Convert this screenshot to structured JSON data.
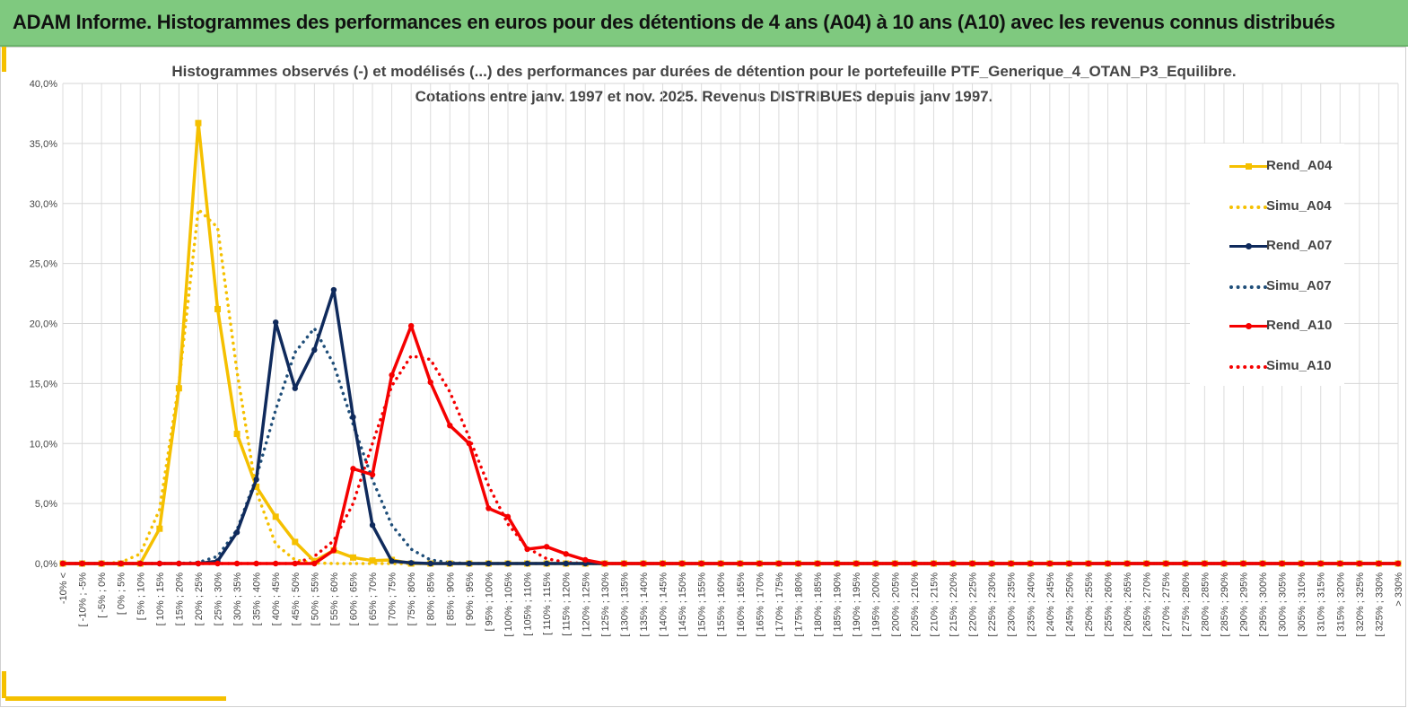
{
  "banner": {
    "title": "ADAM Informe. Histogrammes des performances en euros pour des détentions de 4 ans (A04) à 10 ans (A10) avec les revenus connus distribués"
  },
  "colors": {
    "banner": "#7fc97f",
    "accent": "#f5c000",
    "A04": "#f5c000",
    "A07": "#0f2a5c",
    "A10": "#f50000",
    "Simu_A07": "#1f4e79"
  },
  "chart_data": {
    "type": "line",
    "title": "Histogrammes observés (-) et modélisés (...) des performances par durées de détention pour le portefeuille PTF_Generique_4_OTAN_P3_Equilibre.",
    "subtitle": "Cotations entre janv. 1997 et nov. 2025. Revenus DISTRIBUES depuis janv 1997.",
    "xlabel": "",
    "ylabel": "",
    "ylim": [
      0,
      40
    ],
    "y_ticks": [
      "0,0%",
      "5,0%",
      "10,0%",
      "15,0%",
      "20,0%",
      "25,0%",
      "30,0%",
      "35,0%",
      "40,0%"
    ],
    "grid": true,
    "legend_position": "right",
    "categories": [
      "-10% <",
      "[ -10% ; -5%",
      "[ -5% ; 0%",
      "[ 0% ; 5%",
      "[ 5% ; 10%",
      "[ 10% ; 15%",
      "[ 15% ; 20%",
      "[ 20% ; 25%",
      "[ 25% ; 30%",
      "[ 30% ; 35%",
      "[ 35% ; 40%",
      "[ 40% ; 45%",
      "[ 45% ; 50%",
      "[ 50% ; 55%",
      "[ 55% ; 60%",
      "[ 60% ; 65%",
      "[ 65% ; 70%",
      "[ 70% ; 75%",
      "[ 75% ; 80%",
      "[ 80% ; 85%",
      "[ 85% ; 90%",
      "[ 90% ; 95%",
      "[ 95% ; 100%",
      "[ 100% ; 105%",
      "[ 105% ; 110%",
      "[ 110% ; 115%",
      "[ 115% ; 120%",
      "[ 120% ; 125%",
      "[ 125% ; 130%",
      "[ 130% ; 135%",
      "[ 135% ; 140%",
      "[ 140% ; 145%",
      "[ 145% ; 150%",
      "[ 150% ; 155%",
      "[ 155% ; 160%",
      "[ 160% ; 165%",
      "[ 165% ; 170%",
      "[ 170% ; 175%",
      "[ 175% ; 180%",
      "[ 180% ; 185%",
      "[ 185% ; 190%",
      "[ 190% ; 195%",
      "[ 195% ; 200%",
      "[ 200% ; 205%",
      "[ 205% ; 210%",
      "[ 210% ; 215%",
      "[ 215% ; 220%",
      "[ 220% ; 225%",
      "[ 225% ; 230%",
      "[ 230% ; 235%",
      "[ 235% ; 240%",
      "[ 240% ; 245%",
      "[ 245% ; 250%",
      "[ 250% ; 255%",
      "[ 255% ; 260%",
      "[ 260% ; 265%",
      "[ 265% ; 270%",
      "[ 270% ; 275%",
      "[ 275% ; 280%",
      "[ 280% ; 285%",
      "[ 285% ; 290%",
      "[ 290% ; 295%",
      "[ 295% ; 300%",
      "[ 300% ; 305%",
      "[ 305% ; 310%",
      "[ 310% ; 315%",
      "[ 315% ; 320%",
      "[ 320% ; 325%",
      "[ 325% ; 330%",
      "> 330%"
    ],
    "series": [
      {
        "name": "Rend_A04",
        "style": "solid",
        "marker": "square",
        "color": "#f5c000",
        "values": [
          0,
          0,
          0,
          0,
          0,
          2.9,
          14.6,
          36.7,
          21.2,
          10.8,
          6.4,
          3.9,
          1.8,
          0.2,
          1.1,
          0.5,
          0.25,
          0.3,
          0,
          0,
          0,
          0,
          0,
          0,
          0,
          0,
          0,
          0,
          0,
          0,
          0,
          0,
          0,
          0,
          0,
          0,
          0,
          0,
          0,
          0,
          0,
          0,
          0,
          0,
          0,
          0,
          0,
          0,
          0,
          0,
          0,
          0,
          0,
          0,
          0,
          0,
          0,
          0,
          0,
          0,
          0,
          0,
          0,
          0,
          0,
          0,
          0,
          0,
          0,
          0
        ]
      },
      {
        "name": "Simu_A04",
        "style": "dotted",
        "marker": "none",
        "color": "#f5c000",
        "values": [
          0,
          0,
          0,
          0.1,
          0.8,
          4.5,
          15,
          29.5,
          28,
          16,
          6,
          1.6,
          0.3,
          0.05,
          0,
          0,
          0,
          0,
          0,
          0,
          0,
          0,
          0,
          0,
          0,
          0,
          0,
          0,
          0,
          0,
          0,
          0,
          0,
          0,
          0,
          0,
          0,
          0,
          0,
          0,
          0,
          0,
          0,
          0,
          0,
          0,
          0,
          0,
          0,
          0,
          0,
          0,
          0,
          0,
          0,
          0,
          0,
          0,
          0,
          0,
          0,
          0,
          0,
          0,
          0,
          0,
          0,
          0,
          0,
          0
        ]
      },
      {
        "name": "Rend_A07",
        "style": "solid",
        "marker": "circle",
        "color": "#0f2a5c",
        "values": [
          0,
          0,
          0,
          0,
          0,
          0,
          0,
          0,
          0.2,
          2.6,
          7,
          20.1,
          14.6,
          17.8,
          22.8,
          12.2,
          3.2,
          0.2,
          0.05,
          0,
          0,
          0,
          0,
          0,
          0,
          0,
          0,
          0,
          0,
          0,
          0,
          0,
          0,
          0,
          0,
          0,
          0,
          0,
          0,
          0,
          0,
          0,
          0,
          0,
          0,
          0,
          0,
          0,
          0,
          0,
          0,
          0,
          0,
          0,
          0,
          0,
          0,
          0,
          0,
          0,
          0,
          0,
          0,
          0,
          0,
          0,
          0,
          0,
          0,
          0
        ]
      },
      {
        "name": "Simu_A07",
        "style": "dotted",
        "marker": "none",
        "color": "#1f4e79",
        "values": [
          0,
          0,
          0,
          0,
          0,
          0,
          0,
          0.1,
          0.6,
          2.8,
          7.2,
          12.8,
          17.6,
          19.6,
          16.6,
          11.6,
          7,
          3.2,
          1.2,
          0.3,
          0.08,
          0,
          0,
          0,
          0,
          0,
          0,
          0,
          0,
          0,
          0,
          0,
          0,
          0,
          0,
          0,
          0,
          0,
          0,
          0,
          0,
          0,
          0,
          0,
          0,
          0,
          0,
          0,
          0,
          0,
          0,
          0,
          0,
          0,
          0,
          0,
          0,
          0,
          0,
          0,
          0,
          0,
          0,
          0,
          0,
          0,
          0,
          0,
          0,
          0
        ]
      },
      {
        "name": "Rend_A10",
        "style": "solid",
        "marker": "circle",
        "color": "#f50000",
        "values": [
          0,
          0,
          0,
          0,
          0,
          0,
          0,
          0,
          0,
          0,
          0,
          0,
          0,
          0,
          1.1,
          7.9,
          7.4,
          15.7,
          19.8,
          15.1,
          11.5,
          10,
          4.6,
          3.9,
          1.2,
          1.4,
          0.8,
          0.3,
          0,
          0,
          0,
          0,
          0,
          0,
          0,
          0,
          0,
          0,
          0,
          0,
          0,
          0,
          0,
          0,
          0,
          0,
          0,
          0,
          0,
          0,
          0,
          0,
          0,
          0,
          0,
          0,
          0,
          0,
          0,
          0,
          0,
          0,
          0,
          0,
          0,
          0,
          0,
          0,
          0,
          0
        ]
      },
      {
        "name": "Simu_A10",
        "style": "dotted",
        "marker": "none",
        "color": "#f50000",
        "values": [
          0,
          0,
          0,
          0,
          0,
          0,
          0,
          0,
          0,
          0,
          0,
          0,
          0,
          0.6,
          1.9,
          5,
          10,
          14.8,
          17.3,
          17,
          14.3,
          10.5,
          6.5,
          3.3,
          1.3,
          0.4,
          0.1,
          0,
          0,
          0,
          0,
          0,
          0,
          0,
          0,
          0,
          0,
          0,
          0,
          0,
          0,
          0,
          0,
          0,
          0,
          0,
          0,
          0,
          0,
          0,
          0,
          0,
          0,
          0,
          0,
          0,
          0,
          0,
          0,
          0,
          0,
          0,
          0,
          0,
          0,
          0,
          0,
          0,
          0,
          0
        ]
      }
    ]
  }
}
